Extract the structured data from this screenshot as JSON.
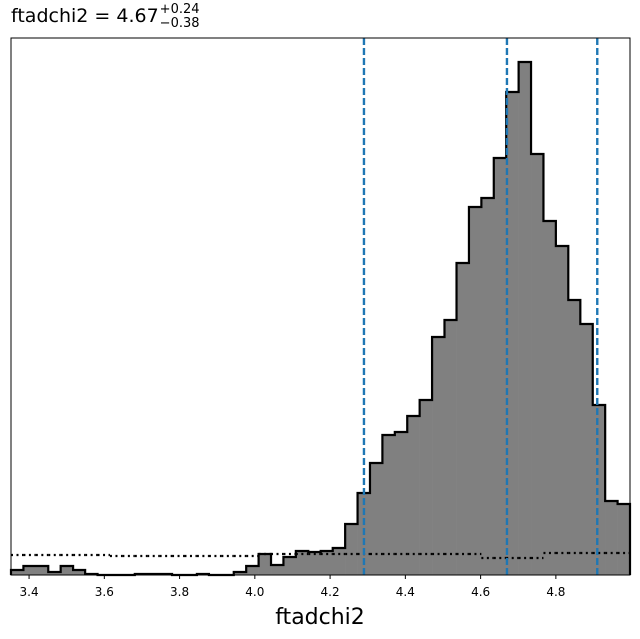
{
  "chart_data": {
    "type": "histogram",
    "title": "ftadchi2 = 4.67",
    "title_upper": "+0.24",
    "title_lower": "−0.38",
    "x_label": "ftadchi2",
    "bins": [
      3.352,
      3.385,
      3.418,
      3.451,
      3.484,
      3.517,
      3.549,
      3.582,
      3.615,
      3.648,
      3.681,
      3.714,
      3.747,
      3.78,
      3.813,
      3.846,
      3.878,
      3.911,
      3.944,
      3.977,
      4.01,
      4.043,
      4.076,
      4.109,
      4.142,
      4.175,
      4.207,
      4.24,
      4.273,
      4.306,
      4.339,
      4.372,
      4.405,
      4.438,
      4.471,
      4.504,
      4.536,
      4.569,
      4.602,
      4.635,
      4.668,
      4.701,
      4.734,
      4.767,
      4.8,
      4.833,
      4.865,
      4.898,
      4.931,
      4.964,
      4.997
    ],
    "values": [
      5,
      9,
      9,
      3,
      9,
      5,
      1,
      0,
      0,
      0,
      1,
      1,
      1,
      0,
      0,
      1,
      0,
      0,
      3,
      9,
      21,
      10,
      18,
      24,
      23,
      24,
      27,
      51,
      82,
      112,
      140,
      143,
      159,
      175,
      238,
      255,
      312,
      368,
      377,
      417,
      483,
      513,
      421,
      354,
      329,
      275,
      251,
      170,
      74,
      71
    ],
    "color": "#808080",
    "edge_color": "#000000",
    "reference_values": [
      20,
      20,
      20,
      20,
      20,
      20,
      20,
      20,
      19,
      19,
      19,
      19,
      19,
      19,
      19,
      19,
      19,
      19,
      19,
      19,
      21,
      21,
      21,
      21,
      21,
      21,
      21,
      21,
      21,
      21,
      21,
      21,
      21,
      21,
      21,
      21,
      21,
      21,
      17,
      17,
      17,
      17,
      17,
      22,
      22,
      22,
      22,
      22,
      22,
      22
    ],
    "reference_color": "#000000",
    "vlines": [
      4.29,
      4.67,
      4.91
    ],
    "vline_color": "#1f77b4",
    "xlim": [
      3.352,
      4.997
    ],
    "xticks": [
      3.4,
      3.6,
      3.8,
      4.0,
      4.2,
      4.4,
      4.6,
      4.8
    ],
    "ylim": [
      0,
      537
    ]
  }
}
